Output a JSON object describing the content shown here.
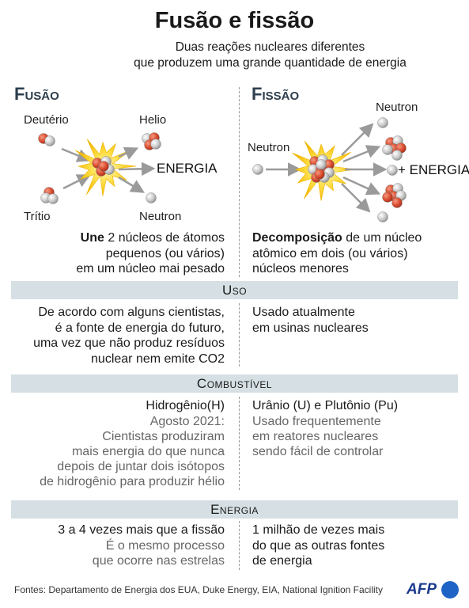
{
  "title": "Fusão e fissão",
  "subtitle": [
    "Duas reações nucleares diferentes",
    "que produzem uma grande quantidade de energia"
  ],
  "fusion": {
    "heading": "Fusão",
    "labels": {
      "deuterium": "Deutério",
      "helium": "Helio",
      "energy": "ENERGIA",
      "tritium": "Trítio",
      "neutron": "Neutron"
    },
    "description": {
      "lead": "Une",
      "lines": [
        "2 núcleos de átomos",
        "pequenos (ou vários)",
        "em um núcleo mai pesado"
      ]
    }
  },
  "fission": {
    "heading": "Fissão",
    "labels": {
      "neutron_in": "Neutron",
      "neutron_out": "Neutron",
      "energy": "+ ENERGIA"
    },
    "description": {
      "lead": "Decomposição",
      "lines": [
        "de um núcleo",
        "atômico em dois (ou vários)",
        "núcleos menores"
      ]
    }
  },
  "sections": [
    {
      "heading": "Uso",
      "left": {
        "main": [
          "De acordo com alguns cientistas,",
          "é a fonte de energia do futuro,",
          "uma vez que não produz resíduos",
          "nuclear nem emite CO2"
        ]
      },
      "right": {
        "main": [
          "Usado atualmente",
          "em usinas nucleares"
        ]
      }
    },
    {
      "heading": "Combustível",
      "left": {
        "main": [
          "Hidrogênio(H)"
        ],
        "note": [
          "Agosto 2021:",
          "Cientistas produziram",
          "mais energia do que nunca",
          "depois de juntar dois isótopos",
          "de hidrogênio para produzir hélio"
        ]
      },
      "right": {
        "main": [
          "Urânio (U) e Plutônio (Pu)"
        ],
        "note": [
          "Usado frequentemente",
          "em reatores nucleares",
          "sendo fácil de controlar"
        ]
      }
    },
    {
      "heading": "Energia",
      "left": {
        "main": [
          "3 a 4 vezes mais que a fissão"
        ],
        "note": [
          "É o mesmo processo",
          "que ocorre nas estrelas"
        ]
      },
      "right": {
        "main": [
          "1 milhão de vezes mais",
          "do que as outras fontes",
          "de energia"
        ]
      }
    }
  ],
  "footer": "Fontes: Departamento de Energia dos EUA, Duke Energy, EIA, National Ignition Facility",
  "logo": "AFP"
}
